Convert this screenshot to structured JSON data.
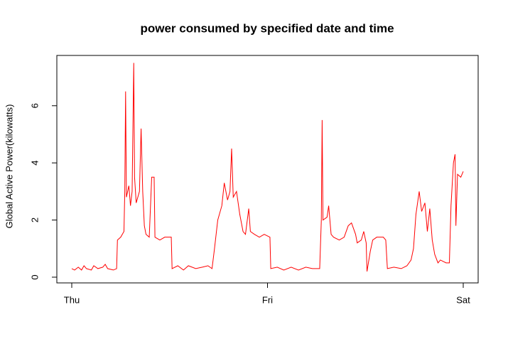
{
  "chart_data": {
    "type": "line",
    "title": "power consumed by specified date and time",
    "ylabel": "Global Active Power(kilowatts)",
    "xlim": [
      -1.83,
      49.83
    ],
    "ylim": [
      -0.2,
      7.76
    ],
    "xticks": [
      {
        "value": 0,
        "label": "Thu"
      },
      {
        "value": 24,
        "label": "Fri"
      },
      {
        "value": 48,
        "label": "Sat"
      }
    ],
    "yticks": [
      0,
      2,
      4,
      6
    ],
    "grid": false,
    "series": [
      {
        "name": "Global Active Power",
        "color": "#ff0000",
        "x": [
          0,
          0.35,
          0.8,
          1.2,
          1.5,
          1.8,
          2.4,
          2.7,
          3.2,
          3.8,
          4.1,
          4.4,
          5.1,
          5.5,
          5.6,
          6.0,
          6.4,
          6.5,
          6.6,
          6.7,
          7.0,
          7.2,
          7.4,
          7.6,
          7.7,
          7.9,
          8.3,
          8.5,
          8.7,
          8.9,
          9.1,
          9.5,
          9.8,
          10.1,
          10.2,
          10.8,
          11.4,
          12.2,
          12.3,
          13.0,
          13.7,
          14.3,
          15.2,
          16.0,
          16.7,
          17.2,
          17.5,
          17.9,
          18.4,
          18.7,
          19.1,
          19.4,
          19.6,
          19.8,
          20.2,
          20.6,
          21.0,
          21.3,
          21.7,
          21.9,
          22.4,
          23.0,
          23.6,
          24.3,
          24.4,
          25.2,
          26.0,
          26.9,
          27.8,
          28.7,
          29.5,
          30.4,
          30.6,
          30.7,
          30.8,
          31.3,
          31.5,
          31.8,
          32.1,
          32.8,
          33.4,
          33.9,
          34.3,
          34.8,
          35.0,
          35.5,
          35.8,
          36.1,
          36.2,
          36.6,
          36.9,
          37.4,
          38.2,
          38.5,
          38.7,
          39.5,
          40.4,
          41.1,
          41.6,
          41.9,
          42.2,
          42.6,
          42.9,
          43.3,
          43.6,
          43.9,
          44.2,
          44.5,
          44.9,
          45.2,
          45.9,
          46.3,
          46.5,
          46.8,
          47.0,
          47.1,
          47.3,
          47.7,
          48.0
        ],
        "values": [
          0.3,
          0.25,
          0.35,
          0.25,
          0.4,
          0.3,
          0.25,
          0.4,
          0.3,
          0.35,
          0.45,
          0.3,
          0.25,
          0.3,
          1.3,
          1.4,
          1.6,
          3.0,
          6.5,
          2.8,
          3.2,
          2.5,
          3.0,
          7.5,
          3.5,
          2.6,
          3.0,
          5.2,
          3.0,
          1.8,
          1.5,
          1.4,
          3.5,
          3.5,
          1.4,
          1.3,
          1.4,
          1.4,
          0.3,
          0.4,
          0.25,
          0.4,
          0.3,
          0.35,
          0.4,
          0.3,
          1.0,
          2.0,
          2.5,
          3.3,
          2.7,
          3.0,
          4.5,
          2.8,
          3.0,
          2.2,
          1.6,
          1.5,
          2.4,
          1.6,
          1.5,
          1.4,
          1.5,
          1.4,
          0.3,
          0.35,
          0.25,
          0.35,
          0.25,
          0.35,
          0.3,
          0.3,
          2.0,
          5.5,
          2.0,
          2.1,
          2.5,
          1.5,
          1.4,
          1.3,
          1.4,
          1.8,
          1.9,
          1.5,
          1.2,
          1.3,
          1.6,
          1.2,
          0.2,
          0.9,
          1.3,
          1.4,
          1.4,
          1.3,
          0.3,
          0.35,
          0.3,
          0.4,
          0.6,
          1.0,
          2.2,
          3.0,
          2.3,
          2.6,
          1.6,
          2.4,
          1.3,
          0.8,
          0.5,
          0.6,
          0.5,
          0.5,
          2.5,
          4.0,
          4.3,
          1.8,
          3.6,
          3.5,
          3.7
        ]
      }
    ]
  }
}
